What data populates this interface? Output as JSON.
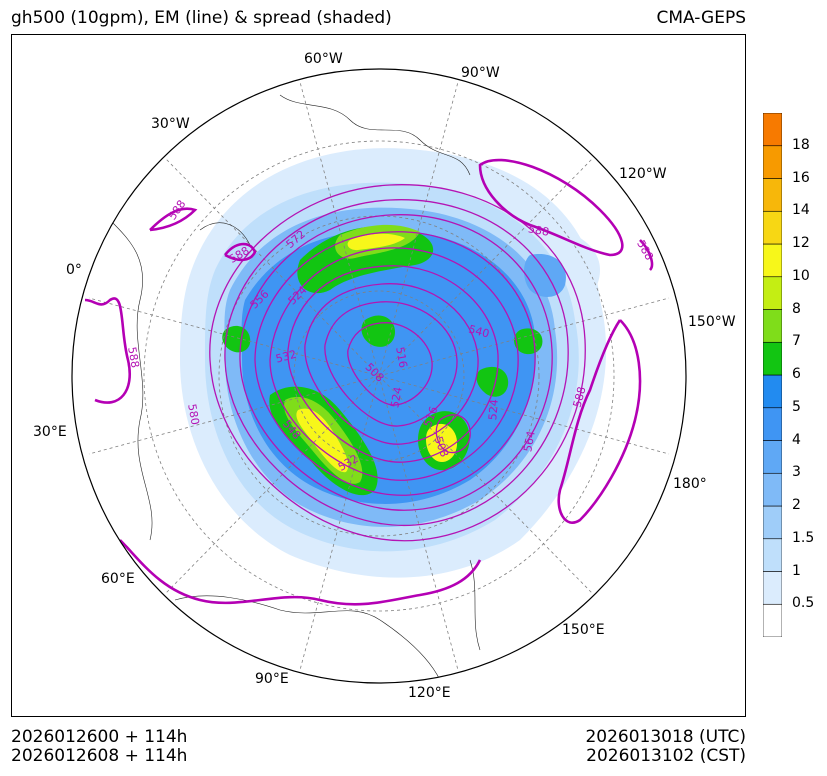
{
  "header": {
    "title": "gh500 (10gpm), EM (line) & spread (shaded)",
    "model": "CMA-GEPS"
  },
  "footer": {
    "init_utc": "2026012600 + 114h",
    "init_cst": "2026012608 + 114h",
    "valid_utc": "2026013018 (UTC)",
    "valid_cst": "2026013102 (CST)"
  },
  "map": {
    "projection": "north-polar-stereographic",
    "longitude_labels": [
      "0°",
      "30°W",
      "60°W",
      "90°W",
      "120°W",
      "150°W",
      "180°",
      "150°E",
      "120°E",
      "90°E",
      "60°E",
      "30°E"
    ],
    "contour_labels": [
      "588",
      "588",
      "572",
      "556",
      "524",
      "532",
      "588",
      "540",
      "516",
      "508",
      "524",
      "580",
      "548",
      "532",
      "516",
      "508",
      "524",
      "564",
      "588",
      "588",
      "588"
    ],
    "line_color": "#b414b4",
    "heavy_line_color": "#b400b4"
  },
  "colorbar": {
    "levels": [
      "0.5",
      "1",
      "1.5",
      "2",
      "3",
      "4",
      "5",
      "6",
      "7",
      "8",
      "10",
      "12",
      "14",
      "16",
      "18"
    ],
    "colors": [
      "#ffffff",
      "#dbecfd",
      "#bfdffb",
      "#9fcdf9",
      "#7fbaf7",
      "#5fa8f5",
      "#3f95f3",
      "#228bf0",
      "#12c512",
      "#7fdd1a",
      "#c4ee13",
      "#f7f71a",
      "#f7d714",
      "#f7b70a",
      "#f79a00",
      "#f77a00",
      "#ff5f00"
    ]
  }
}
